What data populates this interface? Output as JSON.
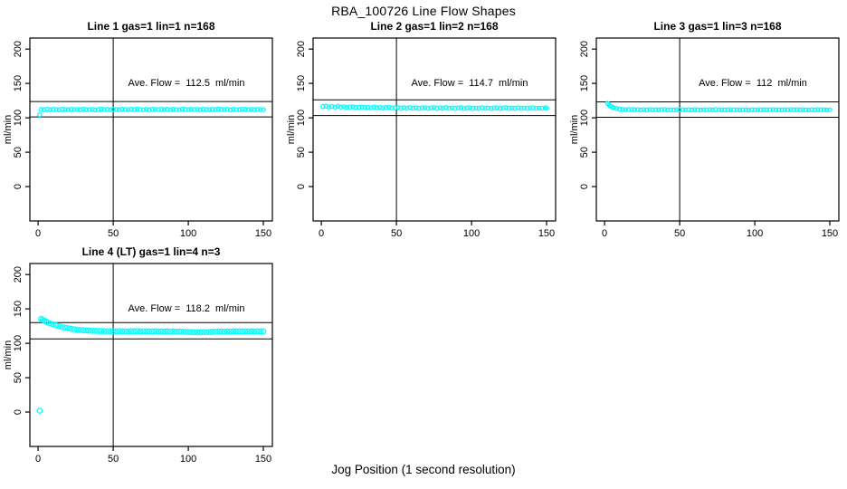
{
  "chart_data": {
    "type": "scatter",
    "title": "RBA_100726  Line Flow Shapes",
    "xlabel": "Jog Position (1 second resolution)",
    "ylabel": "ml/min",
    "x_ticks": [
      0,
      50,
      100,
      150
    ],
    "y_ticks": [
      0,
      50,
      100,
      150,
      200
    ],
    "x_range": [
      -5.5,
      156
    ],
    "y_range": [
      -50,
      216
    ],
    "grid": false,
    "point_color": "#00FFFF",
    "line_color": "#000000",
    "plots": [
      {
        "title": "Line 1 gas=1 lin=1 n=168",
        "annotation": "Ave. Flow =  112.5  ml/min",
        "ave_flow": 112.5,
        "n": 168,
        "vline": 50,
        "hlines": [
          123.75,
          101.25
        ],
        "marker_r": 2.1,
        "points": [
          [
            1,
            104.5
          ],
          [
            2,
            112.2
          ],
          [
            4,
            111.8
          ],
          [
            6,
            112.5
          ],
          [
            8,
            111.6
          ],
          [
            10,
            112.3
          ],
          [
            12,
            112.0
          ],
          [
            14,
            111.5
          ],
          [
            16,
            112.6
          ],
          [
            18,
            112.1
          ],
          [
            20,
            111.7
          ],
          [
            22,
            112.4
          ],
          [
            24,
            111.9
          ],
          [
            26,
            112.2
          ],
          [
            28,
            111.6
          ],
          [
            30,
            112.5
          ],
          [
            32,
            112.0
          ],
          [
            34,
            111.8
          ],
          [
            36,
            112.3
          ],
          [
            38,
            111.5
          ],
          [
            40,
            112.1
          ],
          [
            42,
            112.6
          ],
          [
            44,
            111.9
          ],
          [
            46,
            112.2
          ],
          [
            48,
            111.7
          ],
          [
            50,
            112.4
          ],
          [
            52,
            112.0
          ],
          [
            54,
            111.6
          ],
          [
            56,
            112.5
          ],
          [
            58,
            112.1
          ],
          [
            60,
            111.8
          ],
          [
            62,
            112.3
          ],
          [
            64,
            111.9
          ],
          [
            66,
            112.6
          ],
          [
            68,
            112.0
          ],
          [
            70,
            111.7
          ],
          [
            72,
            112.2
          ],
          [
            74,
            111.5
          ],
          [
            76,
            112.4
          ],
          [
            78,
            112.1
          ],
          [
            80,
            111.8
          ],
          [
            82,
            112.5
          ],
          [
            84,
            111.9
          ],
          [
            86,
            112.2
          ],
          [
            88,
            111.6
          ],
          [
            90,
            112.3
          ],
          [
            92,
            112.0
          ],
          [
            94,
            111.7
          ],
          [
            96,
            112.6
          ],
          [
            98,
            112.1
          ],
          [
            100,
            111.8
          ],
          [
            102,
            112.4
          ],
          [
            104,
            111.9
          ],
          [
            106,
            112.2
          ],
          [
            108,
            111.6
          ],
          [
            110,
            112.5
          ],
          [
            112,
            112.0
          ],
          [
            114,
            111.7
          ],
          [
            116,
            112.3
          ],
          [
            118,
            111.9
          ],
          [
            120,
            112.6
          ],
          [
            122,
            112.1
          ],
          [
            124,
            111.8
          ],
          [
            126,
            112.4
          ],
          [
            128,
            111.5
          ],
          [
            130,
            112.2
          ],
          [
            132,
            112.0
          ],
          [
            134,
            111.7
          ],
          [
            136,
            112.5
          ],
          [
            138,
            112.1
          ],
          [
            140,
            111.9
          ],
          [
            142,
            112.3
          ],
          [
            144,
            111.6
          ],
          [
            146,
            112.2
          ],
          [
            148,
            112.0
          ],
          [
            150,
            111.8
          ]
        ]
      },
      {
        "title": "Line 2 gas=1 lin=2 n=168",
        "annotation": "Ave. Flow =  114.7  ml/min",
        "ave_flow": 114.7,
        "n": 168,
        "vline": 50,
        "hlines": [
          126.17,
          103.23
        ],
        "marker_r": 2.1,
        "points": [
          [
            1,
            116.4
          ],
          [
            3,
            116.8
          ],
          [
            5,
            115.8
          ],
          [
            7,
            116.4
          ],
          [
            9,
            115.6
          ],
          [
            11,
            116.6
          ],
          [
            13,
            115.6
          ],
          [
            15,
            116.1
          ],
          [
            17,
            115.1
          ],
          [
            19,
            115.6
          ],
          [
            21,
            116.0
          ],
          [
            23,
            115.0
          ],
          [
            25,
            115.2
          ],
          [
            27,
            115.7
          ],
          [
            29,
            114.7
          ],
          [
            31,
            115.3
          ],
          [
            33,
            114.5
          ],
          [
            35,
            115.6
          ],
          [
            37,
            114.6
          ],
          [
            39,
            115.1
          ],
          [
            41,
            114.2
          ],
          [
            43,
            114.7
          ],
          [
            45,
            115.2
          ],
          [
            47,
            114.2
          ],
          [
            49,
            114.5
          ],
          [
            51,
            114.9
          ],
          [
            53,
            113.9
          ],
          [
            55,
            114.7
          ],
          [
            57,
            113.9
          ],
          [
            59,
            115.0
          ],
          [
            61,
            114.0
          ],
          [
            63,
            114.6
          ],
          [
            65,
            113.8
          ],
          [
            67,
            114.3
          ],
          [
            69,
            114.8
          ],
          [
            71,
            113.8
          ],
          [
            73,
            114.3
          ],
          [
            75,
            114.7
          ],
          [
            77,
            113.8
          ],
          [
            79,
            114.5
          ],
          [
            81,
            113.9
          ],
          [
            83,
            114.9
          ],
          [
            85,
            114.0
          ],
          [
            87,
            114.5
          ],
          [
            89,
            113.7
          ],
          [
            91,
            114.2
          ],
          [
            93,
            114.7
          ],
          [
            95,
            113.8
          ],
          [
            97,
            114.3
          ],
          [
            99,
            114.6
          ],
          [
            101,
            113.8
          ],
          [
            103,
            114.4
          ],
          [
            105,
            113.9
          ],
          [
            107,
            114.8
          ],
          [
            109,
            114.0
          ],
          [
            111,
            114.4
          ],
          [
            113,
            113.7
          ],
          [
            115,
            114.2
          ],
          [
            117,
            114.6
          ],
          [
            119,
            113.8
          ],
          [
            121,
            114.3
          ],
          [
            123,
            114.7
          ],
          [
            125,
            113.9
          ],
          [
            127,
            114.4
          ],
          [
            129,
            113.8
          ],
          [
            131,
            114.6
          ],
          [
            133,
            113.9
          ],
          [
            135,
            114.3
          ],
          [
            137,
            113.7
          ],
          [
            139,
            114.2
          ],
          [
            141,
            114.6
          ],
          [
            143,
            113.8
          ],
          [
            145,
            114.3
          ],
          [
            147,
            113.9
          ],
          [
            149,
            114.5
          ],
          [
            150,
            114.1
          ]
        ]
      },
      {
        "title": "Line 3 gas=1 lin=3 n=168",
        "annotation": "Ave. Flow =  112  ml/min",
        "ave_flow": 112,
        "n": 168,
        "vline": 50,
        "hlines": [
          123.2,
          100.8
        ],
        "marker_r": 2.1,
        "points": [
          [
            2,
            121.0
          ],
          [
            3,
            118.6
          ],
          [
            4,
            117.0
          ],
          [
            5,
            115.8
          ],
          [
            6,
            114.8
          ],
          [
            8,
            113.5
          ],
          [
            10,
            112.7
          ],
          [
            12,
            112.2
          ],
          [
            14,
            111.9
          ],
          [
            16,
            111.8
          ],
          [
            18,
            112.1
          ],
          [
            20,
            111.6
          ],
          [
            22,
            112.0
          ],
          [
            24,
            111.4
          ],
          [
            26,
            111.9
          ],
          [
            28,
            111.5
          ],
          [
            30,
            112.1
          ],
          [
            32,
            111.6
          ],
          [
            34,
            111.9
          ],
          [
            36,
            111.4
          ],
          [
            38,
            111.8
          ],
          [
            40,
            112.0
          ],
          [
            42,
            111.5
          ],
          [
            44,
            111.8
          ],
          [
            46,
            111.3
          ],
          [
            48,
            111.9
          ],
          [
            50,
            111.6
          ],
          [
            52,
            112.0
          ],
          [
            54,
            111.4
          ],
          [
            56,
            111.8
          ],
          [
            58,
            111.5
          ],
          [
            60,
            112.0
          ],
          [
            62,
            111.6
          ],
          [
            64,
            111.3
          ],
          [
            66,
            111.9
          ],
          [
            68,
            111.5
          ],
          [
            70,
            111.8
          ],
          [
            72,
            111.4
          ],
          [
            74,
            112.0
          ],
          [
            76,
            111.6
          ],
          [
            78,
            111.9
          ],
          [
            80,
            111.4
          ],
          [
            82,
            111.7
          ],
          [
            84,
            112.0
          ],
          [
            86,
            111.5
          ],
          [
            88,
            111.8
          ],
          [
            90,
            111.4
          ],
          [
            92,
            111.9
          ],
          [
            94,
            111.6
          ],
          [
            96,
            111.3
          ],
          [
            98,
            111.8
          ],
          [
            100,
            111.5
          ],
          [
            102,
            112.0
          ],
          [
            104,
            111.6
          ],
          [
            106,
            111.9
          ],
          [
            108,
            111.4
          ],
          [
            110,
            111.7
          ],
          [
            112,
            112.0
          ],
          [
            114,
            111.5
          ],
          [
            116,
            111.8
          ],
          [
            118,
            111.4
          ],
          [
            120,
            111.9
          ],
          [
            122,
            111.6
          ],
          [
            124,
            112.0
          ],
          [
            126,
            111.4
          ],
          [
            128,
            111.8
          ],
          [
            130,
            111.5
          ],
          [
            132,
            111.9
          ],
          [
            134,
            111.6
          ],
          [
            136,
            111.3
          ],
          [
            138,
            111.8
          ],
          [
            140,
            111.5
          ],
          [
            142,
            112.0
          ],
          [
            144,
            111.6
          ],
          [
            146,
            111.9
          ],
          [
            148,
            111.5
          ],
          [
            150,
            111.7
          ]
        ]
      },
      {
        "title": "Line 4 (LT) gas=1 lin=4 n=3",
        "annotation": "Ave. Flow =  118.2  ml/min",
        "ave_flow": 118.2,
        "n": 3,
        "vline": 50,
        "hlines": [
          130.02,
          106.38
        ],
        "marker_r": 2.7,
        "points": [
          [
            1,
            2
          ],
          [
            2,
            135.5
          ],
          [
            3,
            134.2
          ],
          [
            4,
            133.0
          ],
          [
            5,
            131.9
          ],
          [
            6,
            130.8
          ],
          [
            8,
            129.0
          ],
          [
            10,
            127.4
          ],
          [
            12,
            126.0
          ],
          [
            14,
            124.7
          ],
          [
            16,
            123.6
          ],
          [
            18,
            122.6
          ],
          [
            20,
            121.8
          ],
          [
            22,
            121.0
          ],
          [
            24,
            120.4
          ],
          [
            26,
            119.8
          ],
          [
            28,
            119.4
          ],
          [
            30,
            119.0
          ],
          [
            32,
            118.7
          ],
          [
            34,
            118.4
          ],
          [
            36,
            118.2
          ],
          [
            38,
            118.0
          ],
          [
            40,
            117.9
          ],
          [
            42,
            117.8
          ],
          [
            44,
            117.7
          ],
          [
            46,
            117.6
          ],
          [
            48,
            117.6
          ],
          [
            50,
            117.5
          ],
          [
            52,
            117.5
          ],
          [
            54,
            117.6
          ],
          [
            56,
            117.4
          ],
          [
            58,
            117.5
          ],
          [
            60,
            117.3
          ],
          [
            62,
            117.5
          ],
          [
            64,
            117.4
          ],
          [
            66,
            117.6
          ],
          [
            68,
            117.3
          ],
          [
            70,
            117.5
          ],
          [
            72,
            117.2
          ],
          [
            74,
            117.4
          ],
          [
            76,
            117.3
          ],
          [
            78,
            117.5
          ],
          [
            80,
            117.2
          ],
          [
            82,
            117.4
          ],
          [
            84,
            117.1
          ],
          [
            86,
            117.3
          ],
          [
            88,
            117.0
          ],
          [
            90,
            117.2
          ],
          [
            92,
            116.9
          ],
          [
            94,
            117.1
          ],
          [
            96,
            116.8
          ],
          [
            98,
            116.6
          ],
          [
            100,
            116.5
          ],
          [
            102,
            116.3
          ],
          [
            104,
            116.1
          ],
          [
            106,
            116.0
          ],
          [
            108,
            116.1
          ],
          [
            110,
            116.3
          ],
          [
            112,
            116.2
          ],
          [
            114,
            116.4
          ],
          [
            116,
            116.6
          ],
          [
            118,
            116.9
          ],
          [
            120,
            117.1
          ],
          [
            122,
            117.2
          ],
          [
            124,
            117.0
          ],
          [
            126,
            117.3
          ],
          [
            128,
            117.1
          ],
          [
            130,
            117.4
          ],
          [
            132,
            117.2
          ],
          [
            134,
            117.4
          ],
          [
            136,
            117.3
          ],
          [
            138,
            117.5
          ],
          [
            140,
            117.3
          ],
          [
            142,
            117.4
          ],
          [
            144,
            117.2
          ],
          [
            146,
            117.5
          ],
          [
            148,
            117.3
          ],
          [
            150,
            117.4
          ]
        ]
      }
    ]
  }
}
